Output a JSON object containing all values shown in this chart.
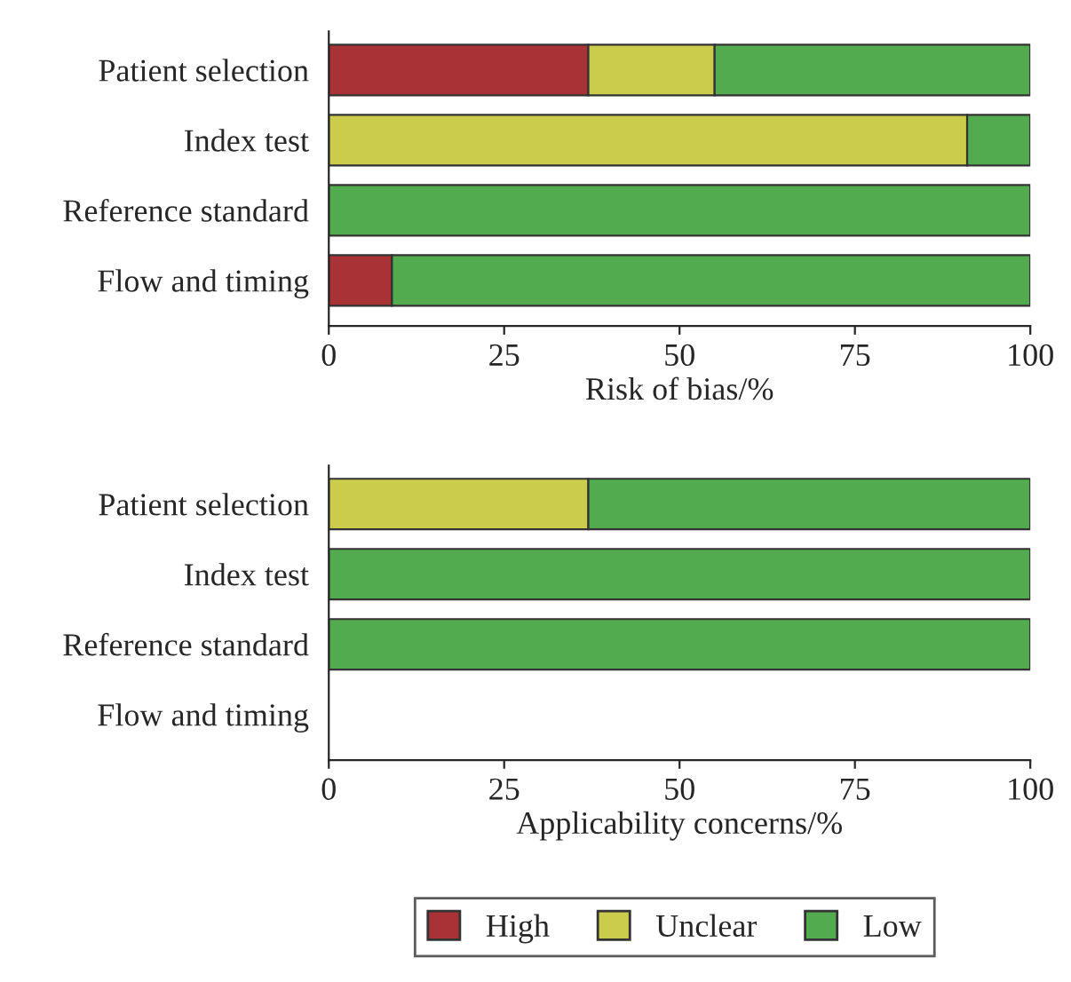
{
  "chart_data": [
    {
      "type": "bar",
      "orientation": "horizontal",
      "stacked": true,
      "xlabel": "Risk of bias/%",
      "categories": [
        "Patient selection",
        "Index test",
        "Reference standard",
        "Flow and timing"
      ],
      "xlim": [
        0,
        100
      ],
      "xticks": [
        0,
        25,
        50,
        75,
        100
      ],
      "grid": false,
      "legend": "bottom",
      "series": [
        {
          "name": "High",
          "color": "#a83236",
          "values": [
            37,
            0,
            0,
            9
          ]
        },
        {
          "name": "Unclear",
          "color": "#cbcb4c",
          "values": [
            18,
            91,
            0,
            0
          ]
        },
        {
          "name": "Low",
          "color": "#52ab4e",
          "values": [
            45,
            9,
            100,
            91
          ]
        }
      ]
    },
    {
      "type": "bar",
      "orientation": "horizontal",
      "stacked": true,
      "xlabel": "Applicability concerns/%",
      "categories": [
        "Patient selection",
        "Index test",
        "Reference standard",
        "Flow and timing"
      ],
      "xlim": [
        0,
        100
      ],
      "xticks": [
        0,
        25,
        50,
        75,
        100
      ],
      "grid": false,
      "series": [
        {
          "color": "#cbcb4c",
          "values": [
            37,
            0,
            0,
            null
          ]
        },
        {
          "color": "#52ab4e",
          "values": [
            63,
            100,
            100,
            null
          ]
        }
      ]
    }
  ]
}
